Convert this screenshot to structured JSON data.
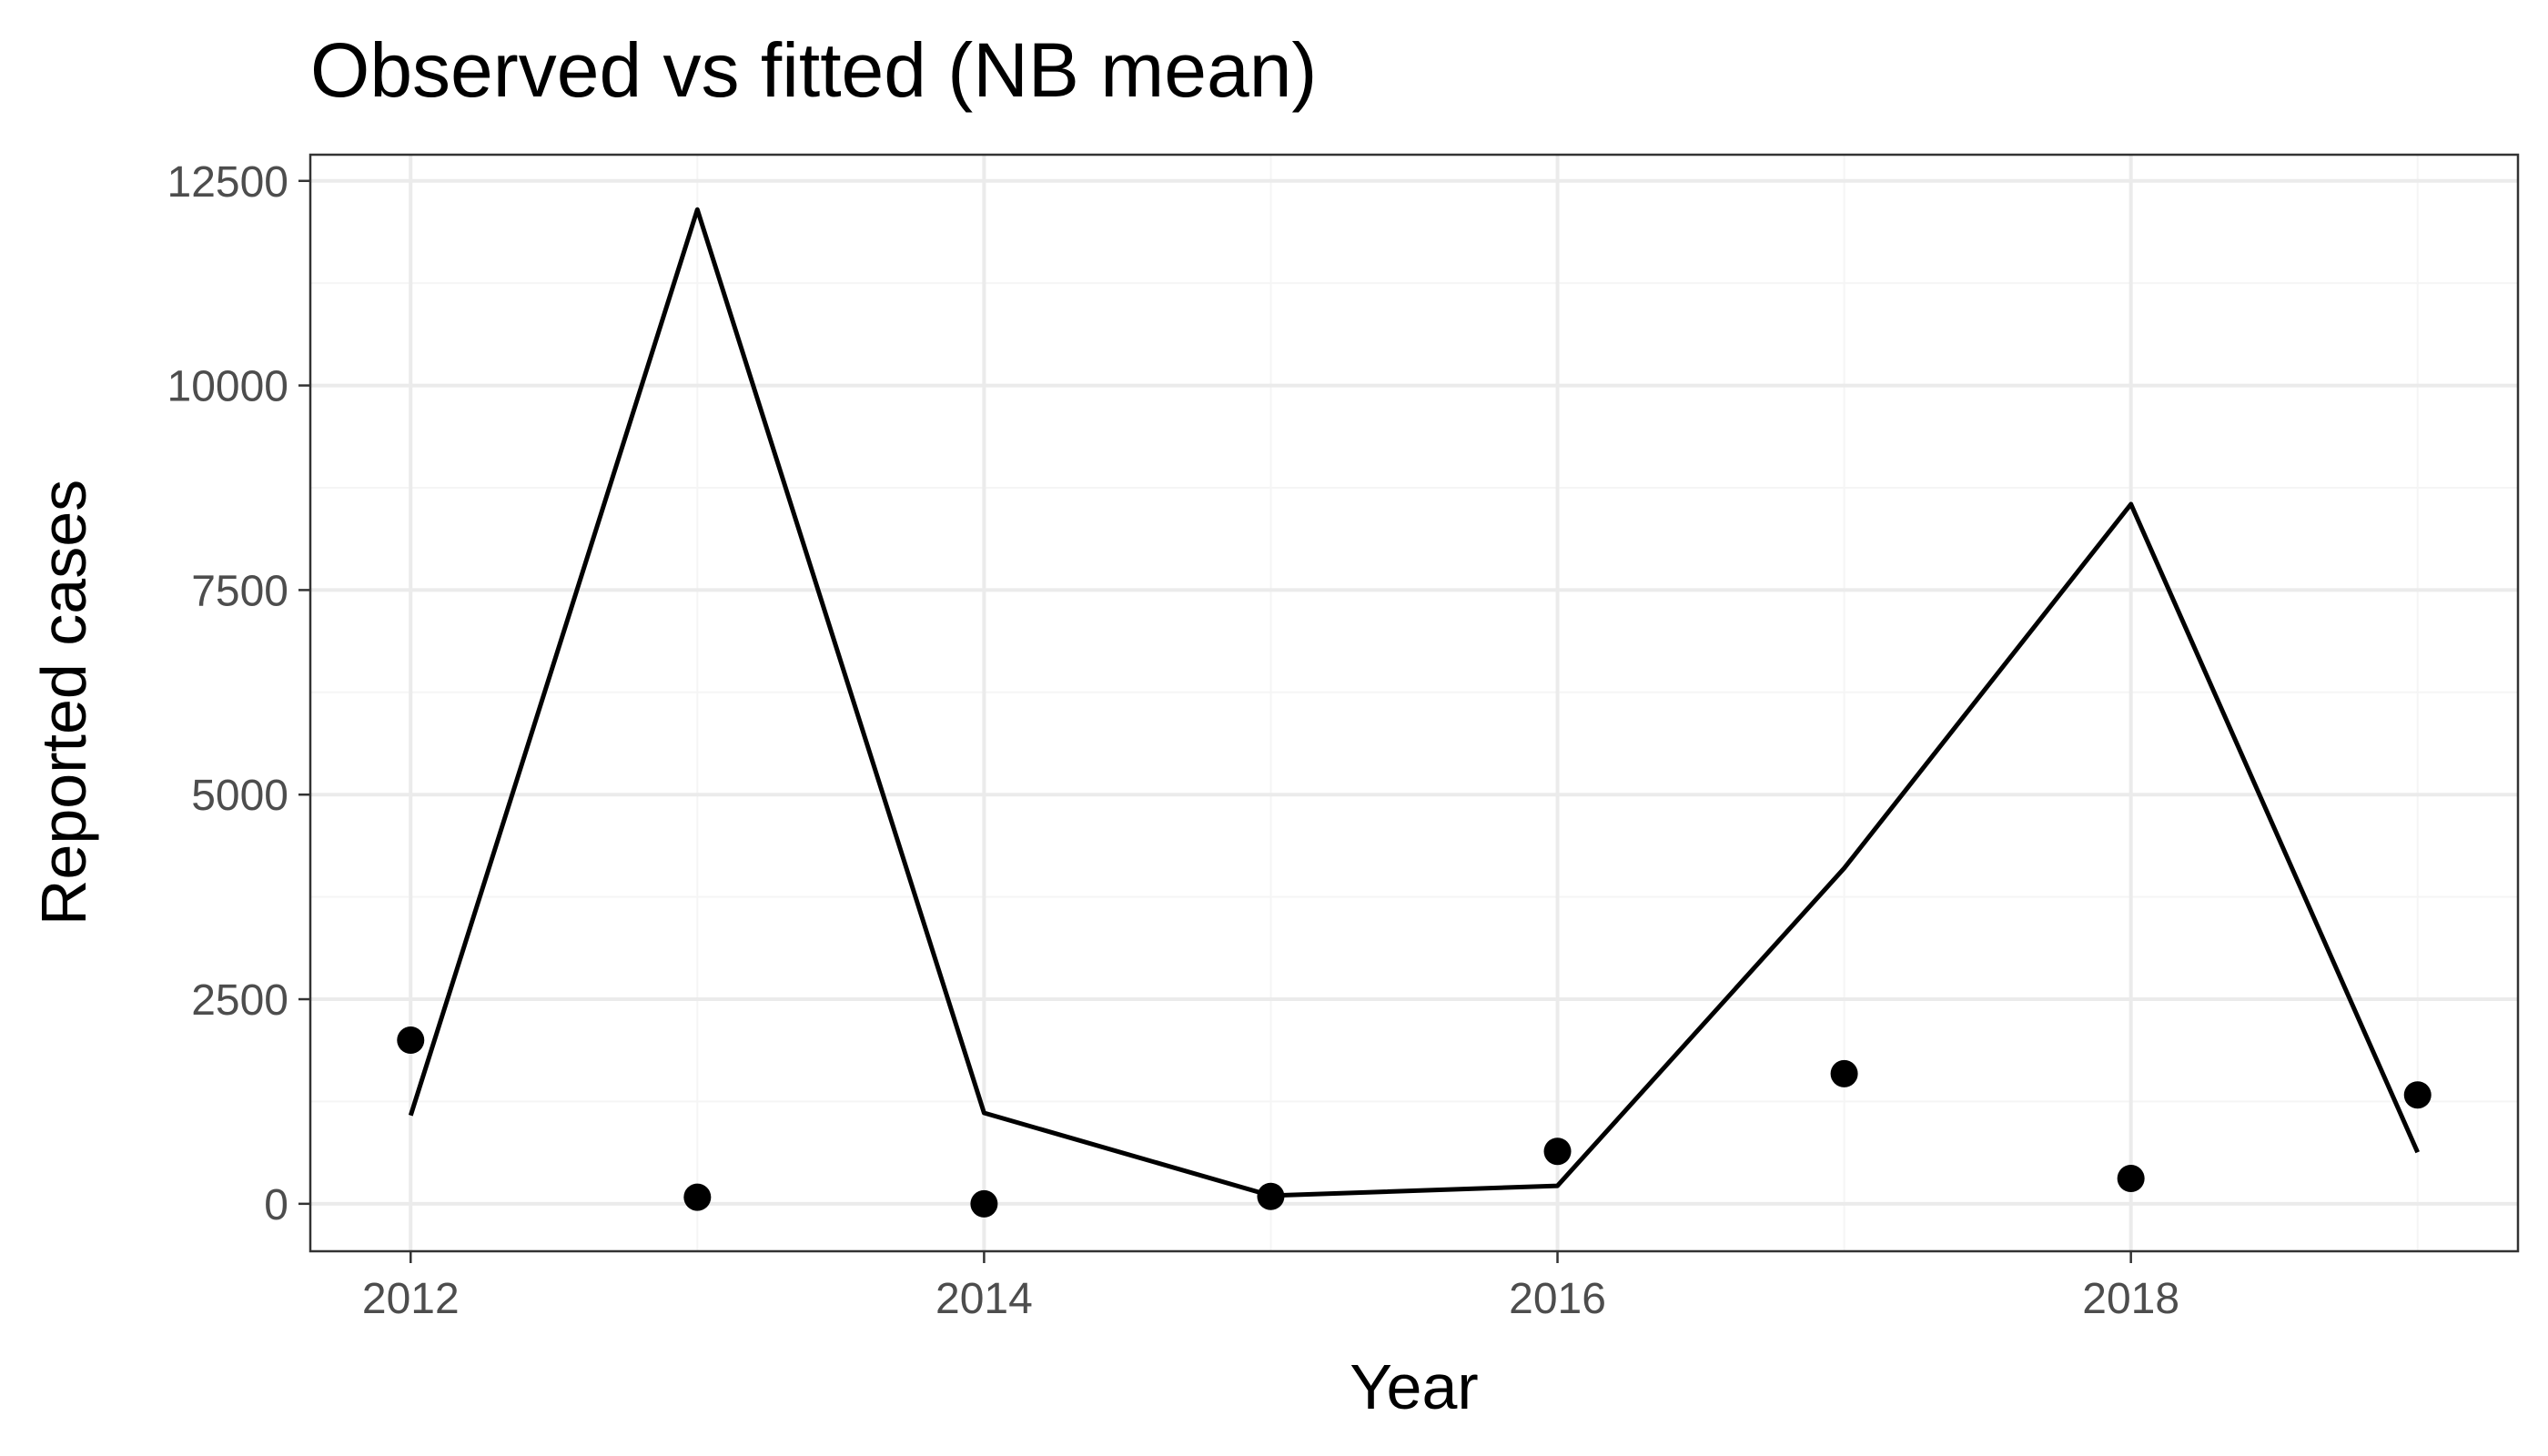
{
  "chart_data": {
    "type": "line",
    "title": "Observed vs fitted (NB mean)",
    "xlabel": "Year",
    "ylabel": "Reported cases",
    "x": [
      2012,
      2013,
      2014,
      2015,
      2016,
      2017,
      2018,
      2019
    ],
    "series": [
      {
        "kind": "points",
        "values": [
          2000,
          80,
          0,
          90,
          640,
          1590,
          310,
          1330
        ]
      },
      {
        "kind": "line",
        "values": [
          1080,
          12150,
          1110,
          100,
          220,
          4100,
          8550,
          630
        ]
      }
    ],
    "xlim": [
      2011.65,
      2019.35
    ],
    "ylim": [
      -580,
      12820
    ],
    "x_ticks": [
      2012,
      2014,
      2016,
      2018
    ],
    "x_tick_labels": [
      "2012",
      "2014",
      "2016",
      "2018"
    ],
    "x_minor_breaks": [
      2013,
      2015,
      2017,
      2019
    ],
    "y_ticks": [
      0,
      2500,
      5000,
      7500,
      10000,
      12500
    ],
    "y_tick_labels": [
      "0",
      "2500",
      "5000",
      "7500",
      "10000",
      "12500"
    ],
    "y_minor_breaks": [
      1250,
      3750,
      6250,
      8750,
      11250
    ],
    "grid": true,
    "legend": "none",
    "colors": {
      "points": "#000000",
      "line": "#000000",
      "grid_major": "#ebebeb",
      "grid_minor": "#f5f5f5",
      "panel_border": "#333333",
      "tick_text": "#4d4d4d"
    }
  }
}
